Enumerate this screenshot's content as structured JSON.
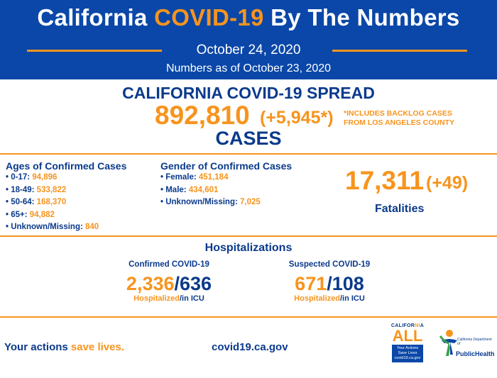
{
  "header": {
    "title_pre": "California ",
    "title_accent": "COVID-19",
    "title_post": " By The Numbers",
    "date": "October 24, 2020",
    "as_of": "Numbers as of October 23, 2020"
  },
  "spread": {
    "title": "CALIFORNIA COVID-19 SPREAD",
    "cases": "892,810",
    "increase": "(+5,945*)",
    "note_line1": "*INCLUDES BACKLOG CASES",
    "note_line2": "FROM LOS ANGELES COUNTY",
    "cases_label": "CASES"
  },
  "ages": {
    "title": "Ages of Confirmed Cases",
    "items": [
      {
        "label": "• 0-17: ",
        "value": "94,896"
      },
      {
        "label": "• 18-49: ",
        "value": "533,822"
      },
      {
        "label": "• 50-64: ",
        "value": "168,370"
      },
      {
        "label": "• 65+: ",
        "value": "94,882"
      },
      {
        "label": "• Unknown/Missing: ",
        "value": "840"
      }
    ]
  },
  "gender": {
    "title": "Gender of Confirmed Cases",
    "items": [
      {
        "label": "• Female: ",
        "value": "451,184"
      },
      {
        "label": "• Male: ",
        "value": "434,601"
      },
      {
        "label": "• Unknown/Missing: ",
        "value": "7,025"
      }
    ]
  },
  "fatalities": {
    "number": "17,311",
    "increase": "(+49)",
    "label": "Fatalities"
  },
  "hospitalizations": {
    "title": "Hospitalizations",
    "confirmed": {
      "title": "Confirmed COVID-19",
      "hospitalized": "2,336",
      "separator": "/",
      "icu": "636",
      "cap_hosp": "Hospitalized",
      "cap_icu": "/in ICU"
    },
    "suspected": {
      "title": "Suspected COVID-19",
      "hospitalized": "671",
      "separator": "/",
      "icu": "108",
      "cap_hosp": "Hospitalized",
      "cap_icu": "/in ICU"
    }
  },
  "footer": {
    "actions_pre": "Your actions ",
    "actions_accent": "save lives.",
    "url": "covid19.ca.gov",
    "ca_all": {
      "top_pre": "CALIFOR",
      "top_accent": "NI",
      "top_post": "A",
      "big": "ALL",
      "box_line1": "Your Actions",
      "box_line2": "Save Lives",
      "box_line3": "covid19.ca.gov"
    },
    "public_health": {
      "small": "California Department of",
      "text": "PublicHealth"
    }
  },
  "colors": {
    "brand_blue": "#0a47a8",
    "accent_orange": "#f7941d"
  }
}
